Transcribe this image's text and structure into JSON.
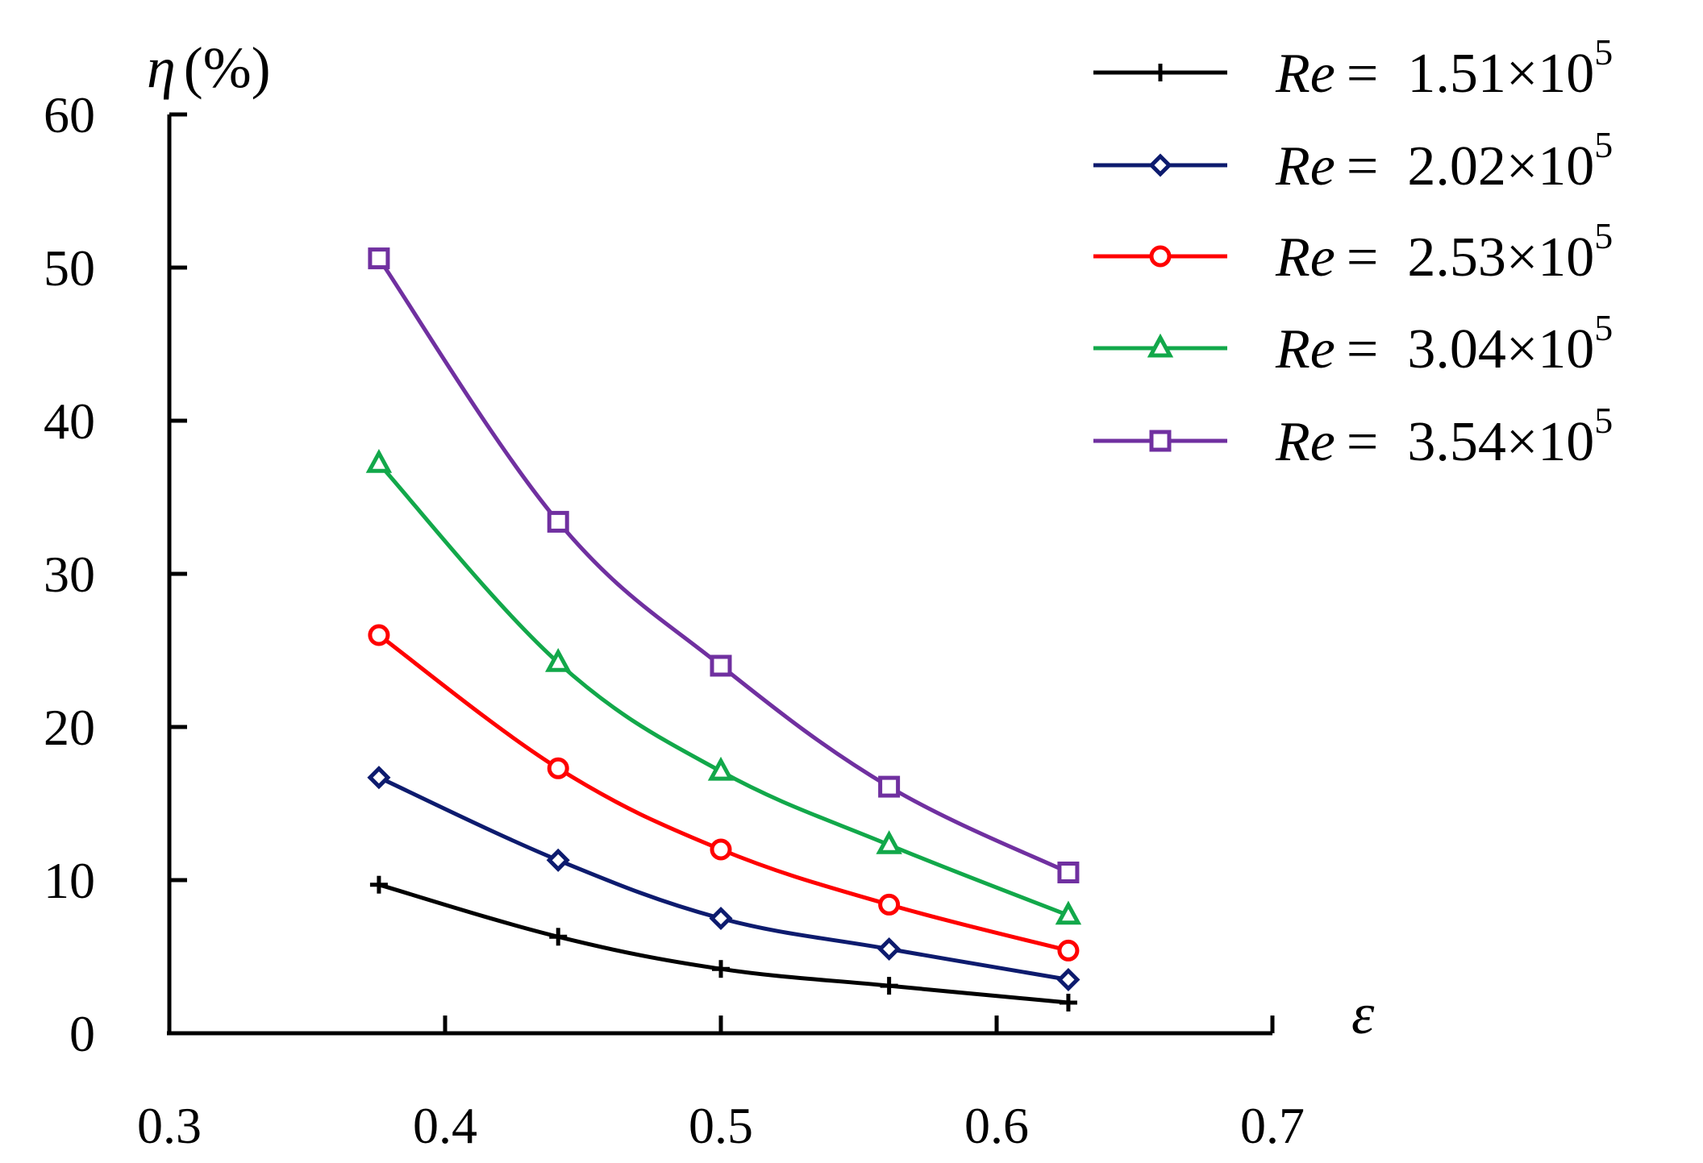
{
  "chart_data": {
    "type": "line",
    "title": "",
    "xlabel": "ε",
    "ylabel_symbol": "η",
    "ylabel_unit": "(%)",
    "xlim": [
      0.3,
      0.7
    ],
    "ylim": [
      0,
      60
    ],
    "xticks": [
      "0.3",
      "0.4",
      "0.5",
      "0.6",
      "0.7"
    ],
    "yticks": [
      "0",
      "10",
      "20",
      "30",
      "40",
      "50",
      "60"
    ],
    "grid": false,
    "legend_position": "top-right",
    "x": [
      0.376,
      0.441,
      0.5,
      0.561,
      0.626
    ],
    "series": [
      {
        "name": "Re = 1.51×10^5",
        "re_prefix": "Re",
        "eq": "=",
        "mantissa": "1.51×10",
        "exponent": "5",
        "color": "#000000",
        "marker": "plus",
        "values": [
          9.7,
          6.3,
          4.2,
          3.1,
          2.0
        ]
      },
      {
        "name": "Re = 2.02×10^5",
        "re_prefix": "Re",
        "eq": "=",
        "mantissa": "2.02×10",
        "exponent": "5",
        "color": "#0d1b6e",
        "marker": "diamond",
        "values": [
          16.7,
          11.3,
          7.5,
          5.5,
          3.5
        ]
      },
      {
        "name": "Re = 2.53×10^5",
        "re_prefix": "Re",
        "eq": "=",
        "mantissa": "2.53×10",
        "exponent": "5",
        "color": "#ff0000",
        "marker": "circle",
        "values": [
          26.0,
          17.3,
          12.0,
          8.4,
          5.4
        ]
      },
      {
        "name": "Re = 3.04×10^5",
        "re_prefix": "Re",
        "eq": "=",
        "mantissa": "3.04×10",
        "exponent": "5",
        "color": "#12a84a",
        "marker": "triangle",
        "values": [
          37.2,
          24.2,
          17.1,
          12.3,
          7.7
        ]
      },
      {
        "name": "Re = 3.54×10^5",
        "re_prefix": "Re",
        "eq": "=",
        "mantissa": "3.54×10",
        "exponent": "5",
        "color": "#7030a0",
        "marker": "square",
        "values": [
          50.6,
          33.4,
          24.0,
          16.1,
          10.5
        ]
      }
    ]
  }
}
